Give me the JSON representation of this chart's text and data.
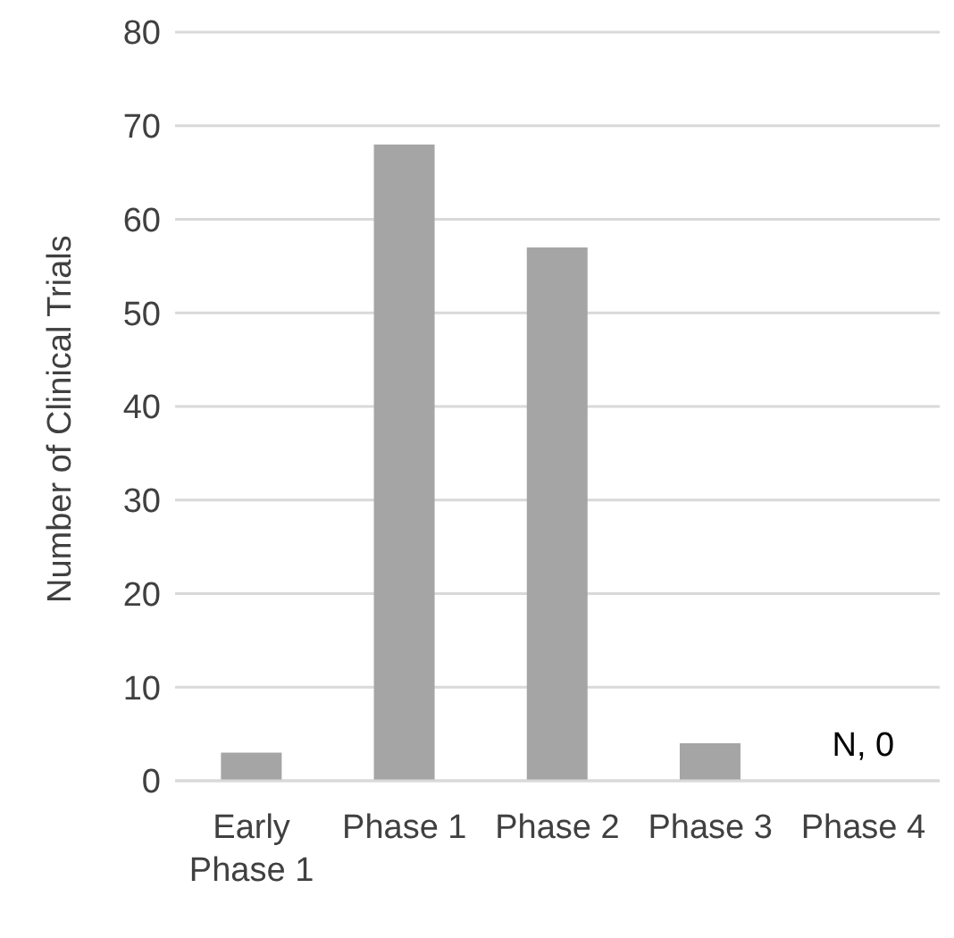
{
  "chart_data": {
    "type": "bar",
    "ylabel": "Number of Clinical Trials",
    "categories": [
      "Early Phase 1",
      "Phase 1",
      "Phase 2",
      "Phase 3",
      "Phase 4"
    ],
    "values": [
      3,
      68,
      57,
      4,
      0
    ],
    "color": "#a5a5a5",
    "ylim": [
      0,
      80
    ],
    "yticks": [
      0,
      10,
      20,
      30,
      40,
      50,
      60,
      70,
      80
    ],
    "grid": "y",
    "annotations": [
      {
        "text": "N, 0",
        "x": "Phase 4",
        "y": 0
      }
    ]
  }
}
